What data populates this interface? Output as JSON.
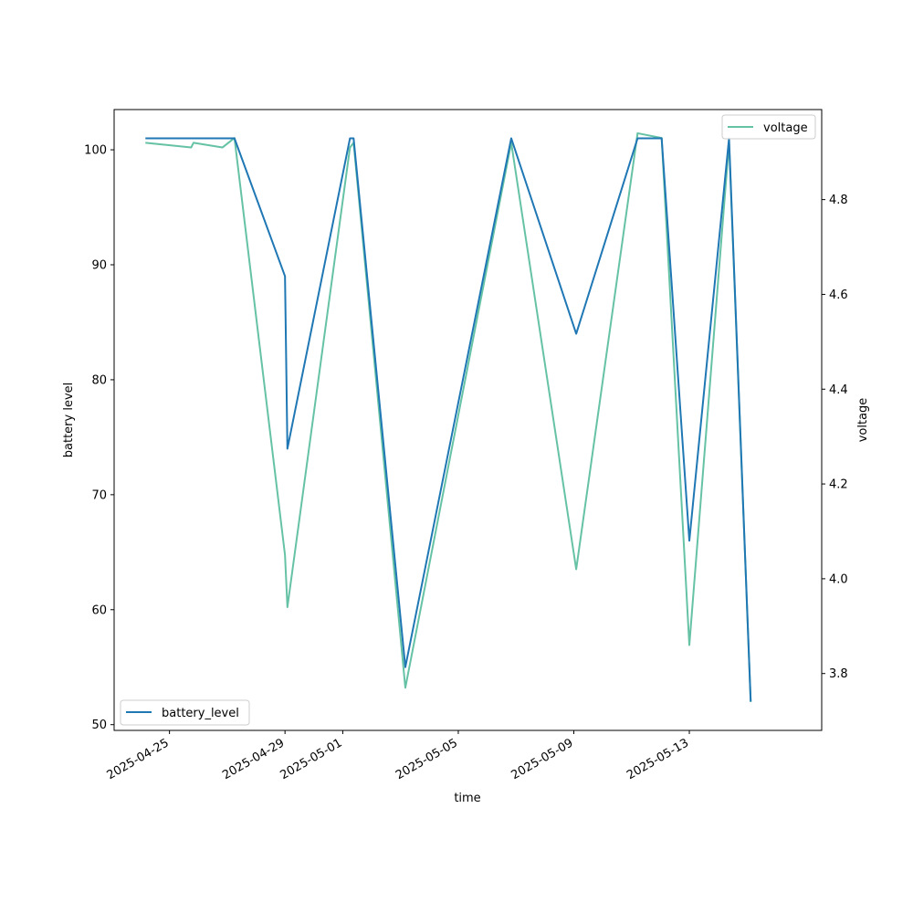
{
  "chart_data": {
    "type": "line",
    "xlabel": "time",
    "ylabel_left": "battery level",
    "ylabel_right": "voltage",
    "x_range": [
      "2025-04-23T02:00",
      "2025-05-17T14:00"
    ],
    "ylim_left": [
      49.5,
      103.5
    ],
    "ylim_right": [
      3.68,
      4.99
    ],
    "x_ticks": [
      "2025-04-25",
      "2025-04-29",
      "2025-05-01",
      "2025-05-05",
      "2025-05-09",
      "2025-05-13"
    ],
    "y_ticks_left": [
      50,
      60,
      70,
      80,
      90,
      100
    ],
    "y_ticks_right": [
      "3.8",
      "4.0",
      "4.2",
      "4.4",
      "4.6",
      "4.8"
    ],
    "series": [
      {
        "name": "battery_level",
        "axis": "left",
        "color": "#1f77b4",
        "legend_position": "lower-left",
        "points": [
          [
            "2025-04-24T04:00",
            101
          ],
          [
            "2025-04-27T06:00",
            101
          ],
          [
            "2025-04-29T00:00",
            89
          ],
          [
            "2025-04-29T02:00",
            74
          ],
          [
            "2025-05-01T06:00",
            101
          ],
          [
            "2025-05-01T09:00",
            101
          ],
          [
            "2025-05-03T04:00",
            55
          ],
          [
            "2025-05-06T20:00",
            101
          ],
          [
            "2025-05-09T02:00",
            84
          ],
          [
            "2025-05-11T05:00",
            101
          ],
          [
            "2025-05-12T01:00",
            101
          ],
          [
            "2025-05-13T00:00",
            66
          ],
          [
            "2025-05-14T09:00",
            101
          ],
          [
            "2025-05-15T03:00",
            52
          ]
        ]
      },
      {
        "name": "voltage",
        "axis": "right",
        "color": "#66c2a5",
        "legend_position": "upper-right",
        "points": [
          [
            "2025-04-24T04:00",
            4.92
          ],
          [
            "2025-04-25T18:00",
            4.91
          ],
          [
            "2025-04-25T20:00",
            4.92
          ],
          [
            "2025-04-26T20:00",
            4.91
          ],
          [
            "2025-04-27T06:00",
            4.93
          ],
          [
            "2025-04-29T00:00",
            4.05
          ],
          [
            "2025-04-29T02:00",
            3.94
          ],
          [
            "2025-05-01T06:00",
            4.91
          ],
          [
            "2025-05-01T09:00",
            4.92
          ],
          [
            "2025-05-03T04:00",
            3.77
          ],
          [
            "2025-05-06T20:00",
            4.92
          ],
          [
            "2025-05-09T02:00",
            4.02
          ],
          [
            "2025-05-11T05:00",
            4.94
          ],
          [
            "2025-05-12T01:00",
            4.93
          ],
          [
            "2025-05-13T00:00",
            3.86
          ],
          [
            "2025-05-14T09:00",
            4.92
          ],
          [
            "2025-05-15T03:00",
            3.74
          ]
        ]
      }
    ]
  }
}
